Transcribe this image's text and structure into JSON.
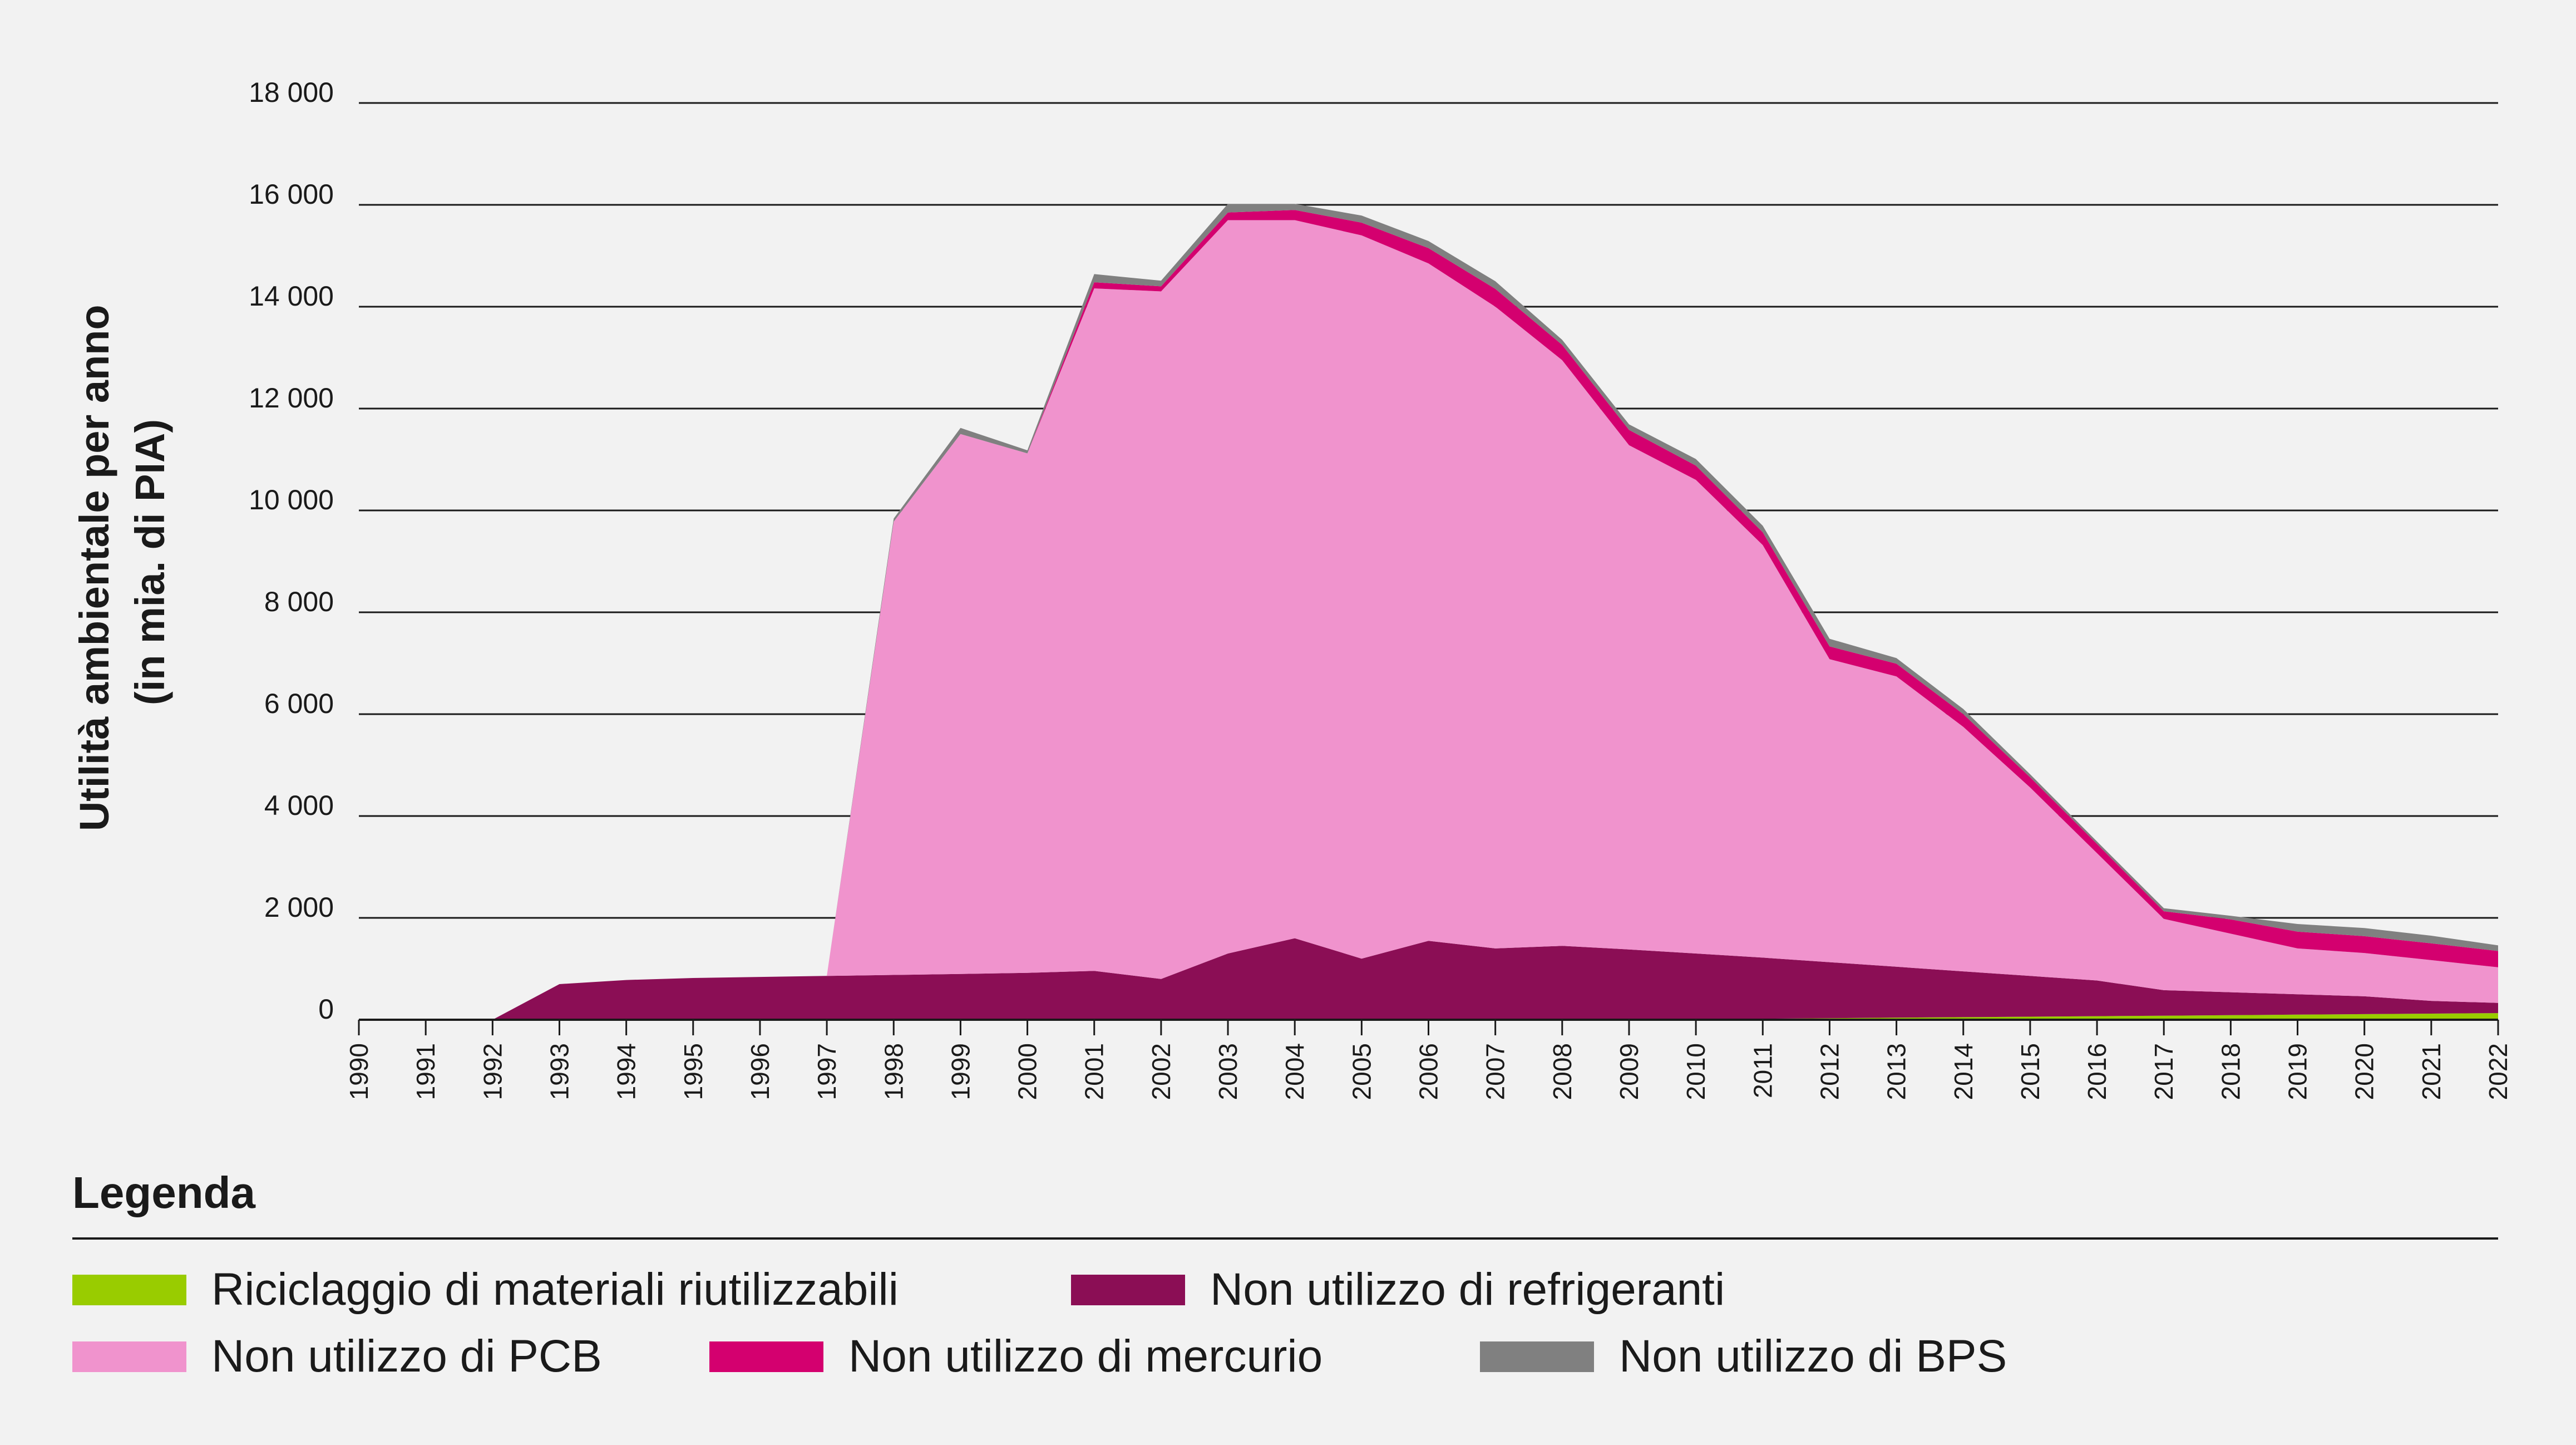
{
  "chart_data": {
    "type": "area",
    "stacked": true,
    "ylabel_lines": [
      "Utilità ambientale per anno",
      "(in mia. di PIA)"
    ],
    "xlabel": "",
    "ylim": [
      0,
      18000
    ],
    "yticks": [
      0,
      2000,
      4000,
      6000,
      8000,
      10000,
      12000,
      14000,
      16000,
      18000
    ],
    "ytick_labels": [
      "0",
      "2 000",
      "4 000",
      "6 000",
      "8 000",
      "10 000",
      "12 000",
      "14 000",
      "16 000",
      "18 000"
    ],
    "grid": true,
    "x": [
      "1990",
      "1991",
      "1992",
      "1993",
      "1994",
      "1995",
      "1996",
      "1997",
      "1998",
      "1999",
      "2000",
      "2001",
      "2002",
      "2003",
      "2004",
      "2005",
      "2006",
      "2007",
      "2008",
      "2009",
      "2010",
      "2011",
      "2012",
      "2013",
      "2014",
      "2015",
      "2016",
      "2017",
      "2018",
      "2019",
      "2020",
      "2021",
      "2022"
    ],
    "series": [
      {
        "name": "Riciclaggio di materiali riutilizzabili",
        "color": "#99cc00",
        "values": [
          0,
          0,
          0,
          0,
          0,
          0,
          0,
          0,
          0,
          0,
          0,
          0,
          0,
          0,
          0,
          0,
          0,
          0,
          0,
          0,
          0,
          20,
          30,
          40,
          50,
          60,
          70,
          80,
          90,
          100,
          110,
          120,
          130
        ]
      },
      {
        "name": "Non utilizzo di refrigeranti",
        "color": "#8b0e55",
        "values": [
          0,
          0,
          0,
          700,
          780,
          820,
          840,
          860,
          880,
          900,
          920,
          960,
          800,
          1300,
          1600,
          1200,
          1550,
          1400,
          1450,
          1380,
          1300,
          1200,
          1100,
          1000,
          900,
          800,
          700,
          500,
          450,
          400,
          350,
          250,
          200
        ]
      },
      {
        "name": "Non utilizzo di PCB",
        "color": "#f093cd",
        "values": [
          0,
          0,
          0,
          0,
          0,
          0,
          0,
          0,
          8900,
          10600,
          10200,
          13400,
          13500,
          14400,
          14100,
          14200,
          13300,
          12600,
          11500,
          9900,
          9300,
          8100,
          5950,
          5700,
          4800,
          3700,
          2500,
          1400,
          1150,
          900,
          850,
          800,
          700
        ]
      },
      {
        "name": "Non utilizzo di mercurio",
        "color": "#d4006f",
        "values": [
          0,
          0,
          0,
          0,
          0,
          0,
          0,
          0,
          0,
          0,
          0,
          120,
          100,
          150,
          200,
          250,
          300,
          350,
          300,
          300,
          280,
          250,
          250,
          250,
          250,
          200,
          180,
          150,
          280,
          330,
          330,
          330,
          320
        ]
      },
      {
        "name": "Non utilizzo di BPS",
        "color": "#808080",
        "values": [
          0,
          0,
          0,
          0,
          0,
          0,
          0,
          0,
          60,
          120,
          60,
          160,
          110,
          170,
          120,
          140,
          140,
          150,
          100,
          110,
          130,
          130,
          150,
          110,
          100,
          60,
          50,
          60,
          70,
          150,
          160,
          150,
          110
        ]
      }
    ],
    "legend_title": "Legenda",
    "legend_placement": "bottom"
  }
}
